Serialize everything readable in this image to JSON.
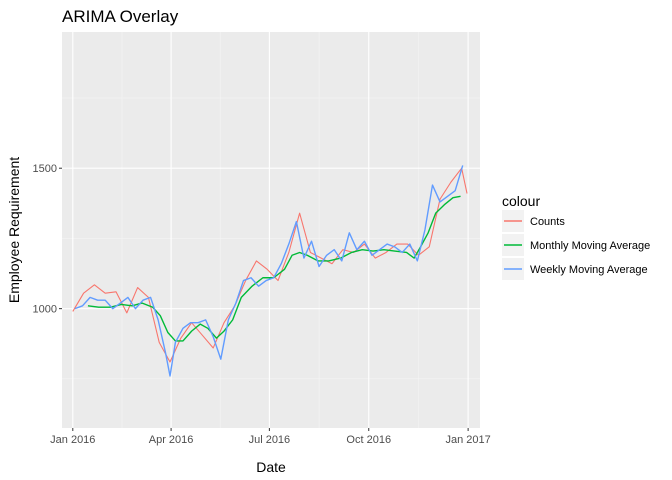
{
  "chart_data": {
    "type": "line",
    "title": "ARIMA Overlay",
    "xlabel": "Date",
    "ylabel": "Employee Requirement",
    "x_ticks": [
      "Jan 2016",
      "Apr 2016",
      "Jul 2016",
      "Oct 2016",
      "Jan 2017"
    ],
    "x_tick_dates": [
      "2016-01-01",
      "2016-04-01",
      "2016-07-01",
      "2016-10-01",
      "2017-01-01"
    ],
    "y_ticks": [
      1000,
      1500
    ],
    "xlim": [
      "2015-12-22",
      "2017-01-12"
    ],
    "ylim": [
      575,
      1985
    ],
    "grid": true,
    "legend_position": "right",
    "legend_title": "colour",
    "series": [
      {
        "name": "Counts",
        "color": "#F8766D",
        "points": [
          [
            "2016-01-01",
            990
          ],
          [
            "2016-01-11",
            1055
          ],
          [
            "2016-01-21",
            1085
          ],
          [
            "2016-01-31",
            1055
          ],
          [
            "2016-02-10",
            1060
          ],
          [
            "2016-02-20",
            985
          ],
          [
            "2016-03-01",
            1075
          ],
          [
            "2016-03-11",
            1040
          ],
          [
            "2016-03-21",
            880
          ],
          [
            "2016-03-31",
            810
          ],
          [
            "2016-04-10",
            895
          ],
          [
            "2016-04-20",
            950
          ],
          [
            "2016-04-30",
            905
          ],
          [
            "2016-05-10",
            860
          ],
          [
            "2016-05-20",
            950
          ],
          [
            "2016-05-30",
            1010
          ],
          [
            "2016-06-09",
            1100
          ],
          [
            "2016-06-19",
            1170
          ],
          [
            "2016-06-29",
            1140
          ],
          [
            "2016-07-09",
            1100
          ],
          [
            "2016-07-19",
            1200
          ],
          [
            "2016-07-29",
            1340
          ],
          [
            "2016-08-08",
            1200
          ],
          [
            "2016-08-18",
            1180
          ],
          [
            "2016-08-28",
            1160
          ],
          [
            "2016-09-07",
            1210
          ],
          [
            "2016-09-17",
            1200
          ],
          [
            "2016-09-27",
            1230
          ],
          [
            "2016-10-07",
            1180
          ],
          [
            "2016-10-17",
            1200
          ],
          [
            "2016-10-27",
            1230
          ],
          [
            "2016-11-06",
            1230
          ],
          [
            "2016-11-16",
            1190
          ],
          [
            "2016-11-26",
            1220
          ],
          [
            "2016-12-06",
            1390
          ],
          [
            "2016-12-16",
            1450
          ],
          [
            "2016-12-26",
            1500
          ],
          [
            "2016-12-31",
            1410
          ]
        ]
      },
      {
        "name": "Monthly Moving Average",
        "color": "#00BA38",
        "points": [
          [
            "2016-01-15",
            1010
          ],
          [
            "2016-01-25",
            1005
          ],
          [
            "2016-02-05",
            1005
          ],
          [
            "2016-02-15",
            1015
          ],
          [
            "2016-02-25",
            1010
          ],
          [
            "2016-03-05",
            1020
          ],
          [
            "2016-03-15",
            1005
          ],
          [
            "2016-03-22",
            975
          ],
          [
            "2016-03-29",
            915
          ],
          [
            "2016-04-05",
            885
          ],
          [
            "2016-04-12",
            885
          ],
          [
            "2016-04-20",
            920
          ],
          [
            "2016-04-28",
            945
          ],
          [
            "2016-05-05",
            930
          ],
          [
            "2016-05-13",
            895
          ],
          [
            "2016-05-20",
            920
          ],
          [
            "2016-05-28",
            960
          ],
          [
            "2016-06-05",
            1040
          ],
          [
            "2016-06-15",
            1080
          ],
          [
            "2016-06-25",
            1110
          ],
          [
            "2016-07-05",
            1110
          ],
          [
            "2016-07-15",
            1140
          ],
          [
            "2016-07-22",
            1190
          ],
          [
            "2016-07-29",
            1200
          ],
          [
            "2016-08-05",
            1190
          ],
          [
            "2016-08-15",
            1170
          ],
          [
            "2016-08-25",
            1170
          ],
          [
            "2016-09-05",
            1180
          ],
          [
            "2016-09-15",
            1200
          ],
          [
            "2016-09-25",
            1210
          ],
          [
            "2016-10-05",
            1205
          ],
          [
            "2016-10-15",
            1210
          ],
          [
            "2016-10-25",
            1205
          ],
          [
            "2016-11-05",
            1200
          ],
          [
            "2016-11-12",
            1180
          ],
          [
            "2016-11-18",
            1220
          ],
          [
            "2016-11-25",
            1270
          ],
          [
            "2016-12-02",
            1340
          ],
          [
            "2016-12-10",
            1370
          ],
          [
            "2016-12-18",
            1395
          ],
          [
            "2016-12-25",
            1400
          ]
        ]
      },
      {
        "name": "Weekly Moving Average",
        "color": "#619CFF",
        "points": [
          [
            "2016-01-03",
            1000
          ],
          [
            "2016-01-10",
            1010
          ],
          [
            "2016-01-17",
            1040
          ],
          [
            "2016-01-24",
            1030
          ],
          [
            "2016-01-31",
            1030
          ],
          [
            "2016-02-07",
            1000
          ],
          [
            "2016-02-14",
            1020
          ],
          [
            "2016-02-21",
            1040
          ],
          [
            "2016-02-28",
            1000
          ],
          [
            "2016-03-06",
            1030
          ],
          [
            "2016-03-13",
            1040
          ],
          [
            "2016-03-20",
            960
          ],
          [
            "2016-03-27",
            840
          ],
          [
            "2016-03-31",
            760
          ],
          [
            "2016-04-05",
            880
          ],
          [
            "2016-04-12",
            930
          ],
          [
            "2016-04-19",
            950
          ],
          [
            "2016-04-26",
            950
          ],
          [
            "2016-05-03",
            960
          ],
          [
            "2016-05-10",
            900
          ],
          [
            "2016-05-17",
            820
          ],
          [
            "2016-05-24",
            960
          ],
          [
            "2016-05-31",
            1020
          ],
          [
            "2016-06-07",
            1100
          ],
          [
            "2016-06-14",
            1110
          ],
          [
            "2016-06-21",
            1080
          ],
          [
            "2016-06-28",
            1100
          ],
          [
            "2016-07-05",
            1110
          ],
          [
            "2016-07-12",
            1160
          ],
          [
            "2016-07-19",
            1230
          ],
          [
            "2016-07-26",
            1310
          ],
          [
            "2016-08-02",
            1180
          ],
          [
            "2016-08-09",
            1240
          ],
          [
            "2016-08-16",
            1150
          ],
          [
            "2016-08-23",
            1190
          ],
          [
            "2016-08-30",
            1210
          ],
          [
            "2016-09-06",
            1170
          ],
          [
            "2016-09-13",
            1270
          ],
          [
            "2016-09-20",
            1210
          ],
          [
            "2016-09-27",
            1240
          ],
          [
            "2016-10-04",
            1190
          ],
          [
            "2016-10-11",
            1210
          ],
          [
            "2016-10-18",
            1230
          ],
          [
            "2016-10-25",
            1220
          ],
          [
            "2016-11-01",
            1200
          ],
          [
            "2016-11-08",
            1230
          ],
          [
            "2016-11-15",
            1170
          ],
          [
            "2016-11-22",
            1280
          ],
          [
            "2016-11-29",
            1440
          ],
          [
            "2016-12-06",
            1380
          ],
          [
            "2016-12-13",
            1400
          ],
          [
            "2016-12-20",
            1420
          ],
          [
            "2016-12-27",
            1510
          ]
        ]
      }
    ]
  }
}
